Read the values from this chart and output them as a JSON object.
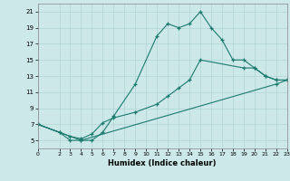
{
  "xlabel": "Humidex (Indice chaleur)",
  "ylabel": "",
  "background_color": "#cde8e8",
  "grid_color": "#afd4d4",
  "line_color": "#1a7a6e",
  "xlim": [
    0,
    23
  ],
  "ylim": [
    4,
    22
  ],
  "xticks": [
    0,
    2,
    3,
    4,
    5,
    6,
    7,
    8,
    9,
    10,
    11,
    12,
    13,
    14,
    15,
    16,
    17,
    18,
    19,
    20,
    21,
    22,
    23
  ],
  "yticks": [
    5,
    7,
    9,
    11,
    13,
    15,
    17,
    19,
    21
  ],
  "line1_x": [
    0,
    2,
    3,
    4,
    5,
    6,
    7,
    9,
    11,
    12,
    13,
    14,
    15,
    16,
    17,
    18,
    19,
    20,
    21,
    22,
    23
  ],
  "line1_y": [
    7,
    6,
    5,
    5,
    5,
    6,
    8,
    12,
    18,
    19.5,
    19,
    19.5,
    21,
    19,
    17.5,
    15,
    15,
    14,
    13,
    12.5,
    12.5
  ],
  "line2_x": [
    0,
    2,
    3,
    4,
    5,
    6,
    7,
    9,
    11,
    12,
    13,
    14,
    15,
    19,
    20,
    21,
    22,
    23
  ],
  "line2_y": [
    7,
    6,
    5.5,
    5.2,
    5.8,
    7.2,
    7.8,
    8.5,
    9.5,
    10.5,
    11.5,
    12.5,
    15,
    14,
    14,
    13,
    12.5,
    12.5
  ],
  "line3_x": [
    0,
    4,
    22,
    23
  ],
  "line3_y": [
    7,
    5,
    12,
    12.5
  ]
}
